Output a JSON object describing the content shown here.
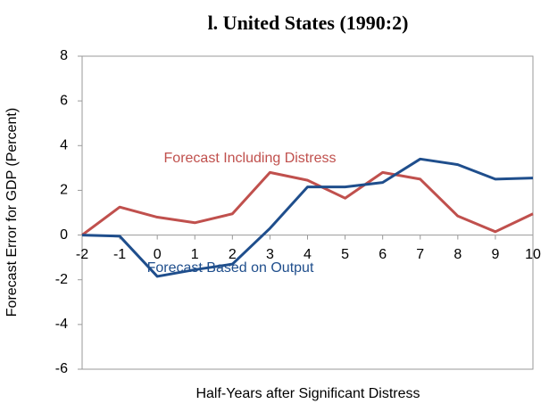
{
  "chart_data": {
    "type": "line",
    "title": "l. United States (1990:2)",
    "x_label": "Half-Years after Significant Distress",
    "y_label": "Forecast Error for GDP (Percent)",
    "x": [
      -2,
      -1,
      0,
      1,
      2,
      3,
      4,
      5,
      6,
      7,
      8,
      9,
      10
    ],
    "xlim": [
      -2,
      10
    ],
    "xticks": [
      -2,
      -1,
      0,
      1,
      2,
      3,
      4,
      5,
      6,
      7,
      8,
      9,
      10
    ],
    "ylim": [
      -6,
      8
    ],
    "yticks": [
      -6,
      -4,
      -2,
      0,
      2,
      4,
      6,
      8
    ],
    "series": [
      {
        "name": "Forecast Including Distress",
        "color": "#c0504d",
        "values": [
          0,
          1.25,
          0.8,
          0.55,
          0.95,
          2.8,
          2.45,
          1.65,
          2.8,
          2.5,
          0.85,
          0.15,
          0.95
        ]
      },
      {
        "name": "Forecast Based on Output",
        "color": "#1f4e8c",
        "values": [
          0,
          -0.05,
          -1.85,
          -1.55,
          -1.3,
          0.3,
          2.15,
          2.15,
          2.35,
          3.4,
          3.15,
          2.5,
          2.55
        ]
      }
    ]
  }
}
